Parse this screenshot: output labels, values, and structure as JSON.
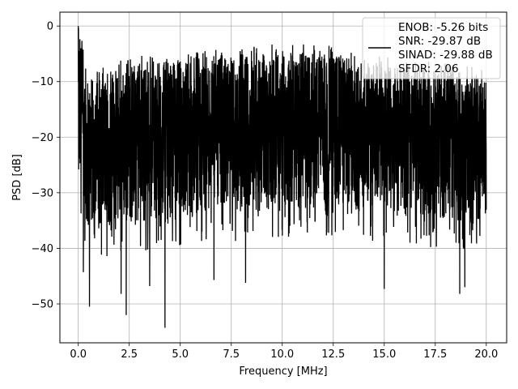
{
  "chart_data": {
    "type": "line",
    "title": "",
    "xlabel": "Frequency [MHz]",
    "ylabel": "PSD [dB]",
    "xlim": [
      -0.9,
      21.0
    ],
    "ylim": [
      -57,
      2.5
    ],
    "xticks": [
      0.0,
      2.5,
      5.0,
      7.5,
      10.0,
      12.5,
      15.0,
      17.5,
      20.0
    ],
    "xtick_labels": [
      "0.0",
      "2.5",
      "5.0",
      "7.5",
      "10.0",
      "12.5",
      "15.0",
      "17.5",
      "20.0"
    ],
    "yticks": [
      0,
      -10,
      -20,
      -30,
      -40,
      -50
    ],
    "ytick_labels": [
      "0",
      "−10",
      "−20",
      "−30",
      "−40",
      "−50"
    ],
    "grid": true,
    "legend_position": "top-right",
    "series": [
      {
        "color": "#000000",
        "x_range": [
          0.0,
          20.0
        ],
        "envelope_points": [
          {
            "x": 0.0,
            "upper": 0.0,
            "lower": -33
          },
          {
            "x": 0.5,
            "upper": -10,
            "lower": -37
          },
          {
            "x": 2.5,
            "upper": -7,
            "lower": -36
          },
          {
            "x": 5.0,
            "upper": -6,
            "lower": -35
          },
          {
            "x": 7.5,
            "upper": -5,
            "lower": -34
          },
          {
            "x": 10.0,
            "upper": -4.5,
            "lower": -33
          },
          {
            "x": 12.5,
            "upper": -5,
            "lower": -33
          },
          {
            "x": 15.0,
            "upper": -7,
            "lower": -34
          },
          {
            "x": 17.5,
            "upper": -8,
            "lower": -35
          },
          {
            "x": 20.0,
            "upper": -9,
            "lower": -36
          }
        ],
        "deep_dips": [
          {
            "x": 0.25,
            "y": -44.3
          },
          {
            "x": 0.55,
            "y": -50.5
          },
          {
            "x": 2.1,
            "y": -48.2
          },
          {
            "x": 2.35,
            "y": -52.0
          },
          {
            "x": 3.5,
            "y": -46.8
          },
          {
            "x": 4.25,
            "y": -54.3
          },
          {
            "x": 6.65,
            "y": -45.7
          },
          {
            "x": 8.2,
            "y": -46.2
          },
          {
            "x": 15.0,
            "y": -47.3
          },
          {
            "x": 18.7,
            "y": -48.2
          },
          {
            "x": 18.95,
            "y": -47.0
          }
        ]
      }
    ],
    "legend_entries": [
      "ENOB: -5.26 bits",
      "SNR: -29.87 dB",
      "SINAD: -29.88 dB",
      "SFDR: 2.06"
    ]
  }
}
